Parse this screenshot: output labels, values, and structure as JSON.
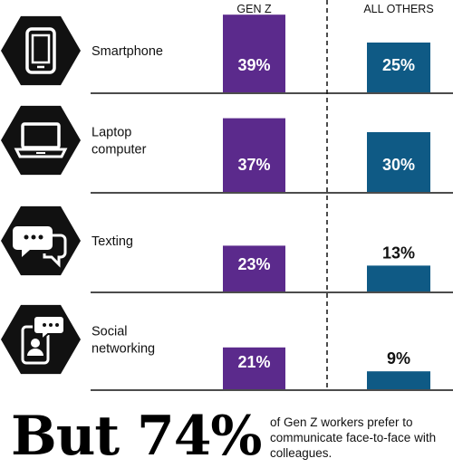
{
  "chart_data": {
    "type": "bar",
    "series": [
      {
        "name": "GEN Z",
        "color": "#5b2a8c"
      },
      {
        "name": "ALL OTHERS",
        "color": "#0f5a85"
      }
    ],
    "categories": [
      {
        "label": [
          "Smartphone"
        ],
        "icon": "smartphone-icon",
        "values": [
          39,
          25
        ]
      },
      {
        "label": [
          "Laptop",
          "computer"
        ],
        "icon": "laptop-icon",
        "values": [
          37,
          30
        ]
      },
      {
        "label": [
          "Texting"
        ],
        "icon": "chat-bubbles-icon",
        "values": [
          23,
          13
        ]
      },
      {
        "label": [
          "Social",
          "networking"
        ],
        "icon": "social-networking-icon",
        "values": [
          21,
          9
        ]
      }
    ],
    "unit": "%"
  },
  "footer": {
    "headline": "But 74%",
    "note": "of Gen Z workers prefer to communicate face-to-face with colleagues."
  },
  "colors": {
    "icon_bg": "#111111",
    "icon_fg": "#ffffff",
    "rule": "#111111"
  }
}
